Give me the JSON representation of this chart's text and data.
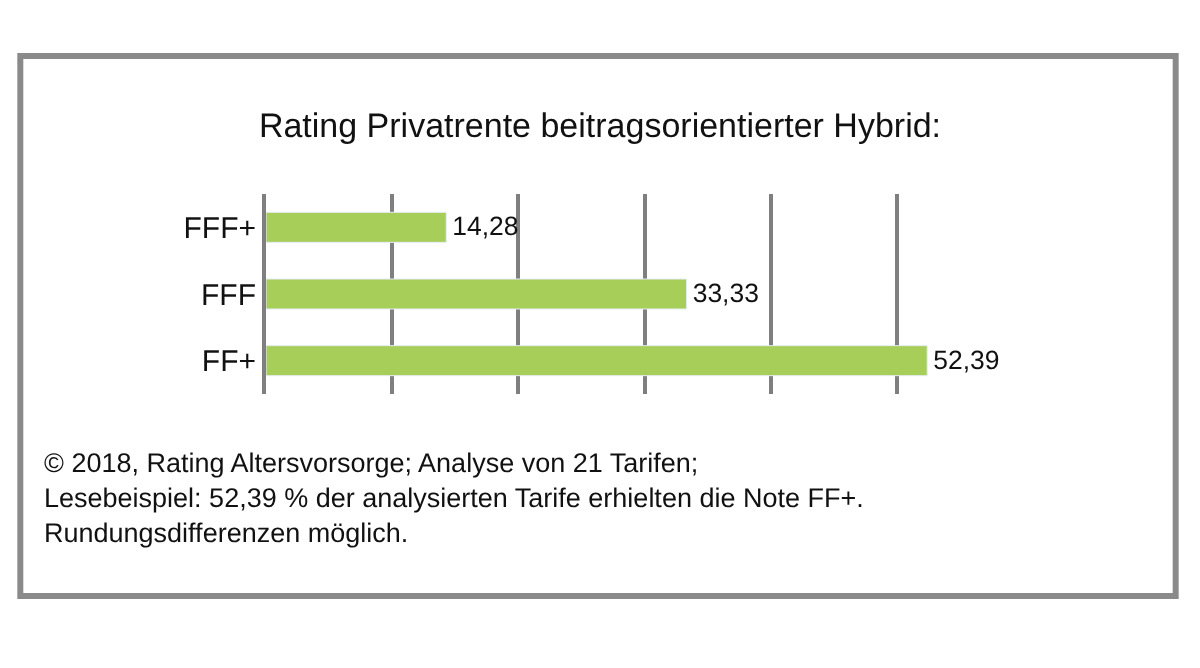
{
  "chart_data": {
    "type": "bar",
    "orientation": "horizontal",
    "title": "Rating Privatrente beitragsorientierter Hybrid:",
    "categories": [
      "FFF+",
      "FFF",
      "FF+"
    ],
    "values": [
      14.28,
      33.33,
      52.39
    ],
    "value_labels": [
      "14,28",
      "33,33",
      "52,39"
    ],
    "color": "#a6ce58",
    "xticks": [
      {
        "value": 0,
        "label": null
      },
      {
        "value": 10,
        "label": null
      },
      {
        "value": 20,
        "label": null
      },
      {
        "value": 30,
        "label": null
      },
      {
        "value": 40,
        "label": null
      },
      {
        "value": 50,
        "label": null
      }
    ],
    "grid": "x",
    "tick_labels": "y",
    "legend": false,
    "annotations": [
      "© 2018, Rating Altersvorsorge; Analyse von 21 Tarifen;\nLesebeispiel: 52,39 % der analysierten Tarife erhielten die Note FF+.\nRundungsdifferenzen möglich."
    ]
  }
}
